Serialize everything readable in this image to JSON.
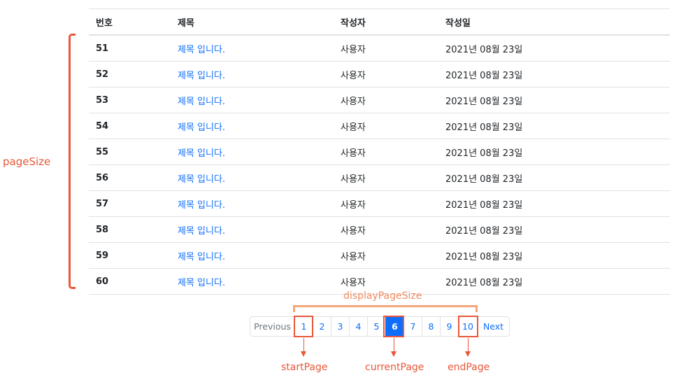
{
  "table": {
    "headers": [
      "번호",
      "제목",
      "작성자",
      "작성일"
    ],
    "rows": [
      {
        "num": "51",
        "title": "제목 입니다.",
        "author": "사용자",
        "date": "2021년 08월 23일"
      },
      {
        "num": "52",
        "title": "제목 입니다.",
        "author": "사용자",
        "date": "2021년 08월 23일"
      },
      {
        "num": "53",
        "title": "제목 입니다.",
        "author": "사용자",
        "date": "2021년 08월 23일"
      },
      {
        "num": "54",
        "title": "제목 입니다.",
        "author": "사용자",
        "date": "2021년 08월 23일"
      },
      {
        "num": "55",
        "title": "제목 입니다.",
        "author": "사용자",
        "date": "2021년 08월 23일"
      },
      {
        "num": "56",
        "title": "제목 입니다.",
        "author": "사용자",
        "date": "2021년 08월 23일"
      },
      {
        "num": "57",
        "title": "제목 입니다.",
        "author": "사용자",
        "date": "2021년 08월 23일"
      },
      {
        "num": "58",
        "title": "제목 입니다.",
        "author": "사용자",
        "date": "2021년 08월 23일"
      },
      {
        "num": "59",
        "title": "제목 입니다.",
        "author": "사용자",
        "date": "2021년 08월 23일"
      },
      {
        "num": "60",
        "title": "제목 입니다.",
        "author": "사용자",
        "date": "2021년 08월 23일"
      }
    ]
  },
  "pagination": {
    "prev_label": "Previous",
    "pages": [
      "1",
      "2",
      "3",
      "4",
      "5",
      "6",
      "7",
      "8",
      "9",
      "10"
    ],
    "active_page": "6",
    "next_label": "Next"
  },
  "annotations": {
    "page_size": "pageSize",
    "display_page_size": "displayPageSize",
    "start_page": "startPage",
    "current_page": "currentPage",
    "end_page": "endPage"
  },
  "colors": {
    "link": "#0d6efd",
    "annotation": "#e8583a",
    "annotation_light": "#f3a77a",
    "border": "#dee2e6"
  }
}
